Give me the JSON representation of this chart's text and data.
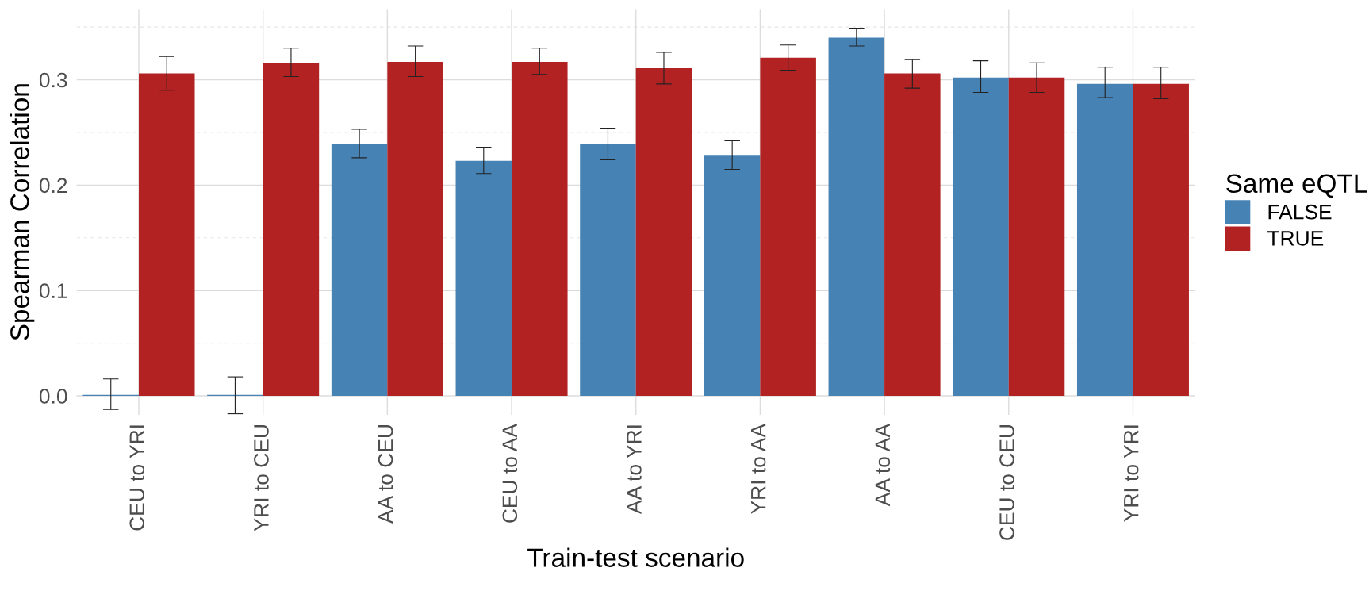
{
  "chart_data": {
    "type": "bar",
    "xlabel": "Train-test scenario",
    "ylabel": "Spearman Correlation",
    "legend_title": "Same eQTL",
    "categories": [
      "CEU to YRI",
      "YRI to CEU",
      "AA to CEU",
      "CEU to AA",
      "AA to YRI",
      "YRI to AA",
      "AA to AA",
      "CEU to CEU",
      "YRI to YRI"
    ],
    "series": [
      {
        "name": "FALSE",
        "color": "#4682b4",
        "values": [
          0.001,
          0.001,
          0.239,
          0.223,
          0.239,
          0.228,
          0.34,
          0.302,
          0.296
        ],
        "errors": [
          [
            -0.013,
            0.016
          ],
          [
            -0.017,
            0.018
          ],
          [
            0.226,
            0.253
          ],
          [
            0.211,
            0.236
          ],
          [
            0.224,
            0.254
          ],
          [
            0.215,
            0.242
          ],
          [
            0.332,
            0.349
          ],
          [
            0.288,
            0.318
          ],
          [
            0.283,
            0.312
          ]
        ]
      },
      {
        "name": "TRUE",
        "color": "#b22222",
        "values": [
          0.306,
          0.316,
          0.317,
          0.317,
          0.311,
          0.321,
          0.306,
          0.302,
          0.296
        ],
        "errors": [
          [
            0.29,
            0.322
          ],
          [
            0.303,
            0.33
          ],
          [
            0.303,
            0.332
          ],
          [
            0.305,
            0.33
          ],
          [
            0.296,
            0.326
          ],
          [
            0.309,
            0.333
          ],
          [
            0.292,
            0.319
          ],
          [
            0.288,
            0.316
          ],
          [
            0.282,
            0.312
          ]
        ]
      }
    ],
    "ylim": [
      -0.018,
      0.367
    ],
    "yticks": [
      {
        "value": 0,
        "label": "0.0"
      },
      0.1,
      0.2,
      0.3
    ],
    "grid": true,
    "legend": "right"
  }
}
